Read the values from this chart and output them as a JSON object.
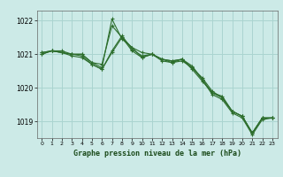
{
  "bg_color": "#cceae7",
  "grid_color": "#aad4d0",
  "line_color": "#2d6e2d",
  "marker_color": "#2d6e2d",
  "title": "Graphe pression niveau de la mer (hPa)",
  "ylim": [
    1018.5,
    1022.3
  ],
  "xlim": [
    -0.5,
    23.5
  ],
  "yticks": [
    1019,
    1020,
    1021,
    1022
  ],
  "xticks": [
    0,
    1,
    2,
    3,
    4,
    5,
    6,
    7,
    8,
    9,
    10,
    11,
    12,
    13,
    14,
    15,
    16,
    17,
    18,
    19,
    20,
    21,
    22,
    23
  ],
  "series": [
    [
      1021.0,
      1021.1,
      1021.1,
      1021.0,
      1021.0,
      1020.75,
      1020.7,
      1021.85,
      1021.5,
      1021.2,
      1021.05,
      1021.0,
      1020.85,
      1020.8,
      1020.85,
      1020.55,
      1020.2,
      1019.85,
      1019.75,
      1019.3,
      1019.15,
      1018.65,
      1019.1,
      1019.1
    ],
    [
      1021.05,
      1021.1,
      1021.05,
      1020.95,
      1020.9,
      1020.7,
      1020.55,
      1021.1,
      1021.55,
      1021.15,
      1020.95,
      1021.0,
      1020.85,
      1020.8,
      1020.85,
      1020.65,
      1020.25,
      1019.85,
      1019.7,
      1019.3,
      1019.15,
      1018.65,
      1019.1,
      1019.1
    ],
    [
      1021.0,
      1021.1,
      1021.05,
      1021.0,
      1021.0,
      1020.75,
      1020.6,
      1022.05,
      1021.45,
      1021.2,
      1020.9,
      1021.0,
      1020.85,
      1020.75,
      1020.85,
      1020.6,
      1020.3,
      1019.9,
      1019.7,
      1019.3,
      1019.15,
      1018.65,
      1019.1,
      1019.1
    ],
    [
      1021.05,
      1021.1,
      1021.05,
      1021.0,
      1020.95,
      1020.7,
      1020.55,
      1021.05,
      1021.5,
      1021.1,
      1020.9,
      1021.0,
      1020.8,
      1020.75,
      1020.8,
      1020.6,
      1020.25,
      1019.8,
      1019.65,
      1019.25,
      1019.1,
      1018.6,
      1019.05,
      1019.1
    ]
  ]
}
